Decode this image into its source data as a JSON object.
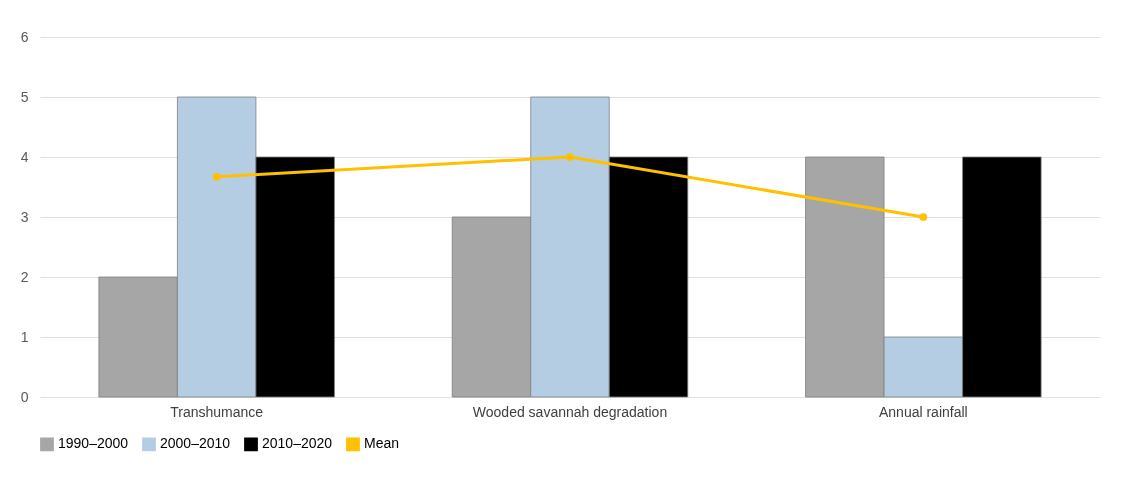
{
  "chart_data": {
    "type": "bar",
    "categories": [
      "Transhumance",
      "Wooded savannah degradation",
      "Annual rainfall"
    ],
    "series": [
      {
        "name": "1990–2000",
        "color": "#a6a6a6",
        "values": [
          2,
          3,
          4
        ]
      },
      {
        "name": "2000–2010",
        "color": "#b4cde3",
        "values": [
          5,
          5,
          1
        ]
      },
      {
        "name": "2010–2020",
        "color": "#000000",
        "values": [
          4,
          4,
          4
        ]
      },
      {
        "name": "Mean",
        "type": "line",
        "color": "#ffc000",
        "values": [
          3.67,
          4,
          3
        ]
      }
    ],
    "ylim": [
      0,
      6
    ],
    "yticks": [
      0,
      1,
      2,
      3,
      4,
      5,
      6
    ],
    "grid": "y",
    "legend": "bottom",
    "marker": "circle"
  }
}
